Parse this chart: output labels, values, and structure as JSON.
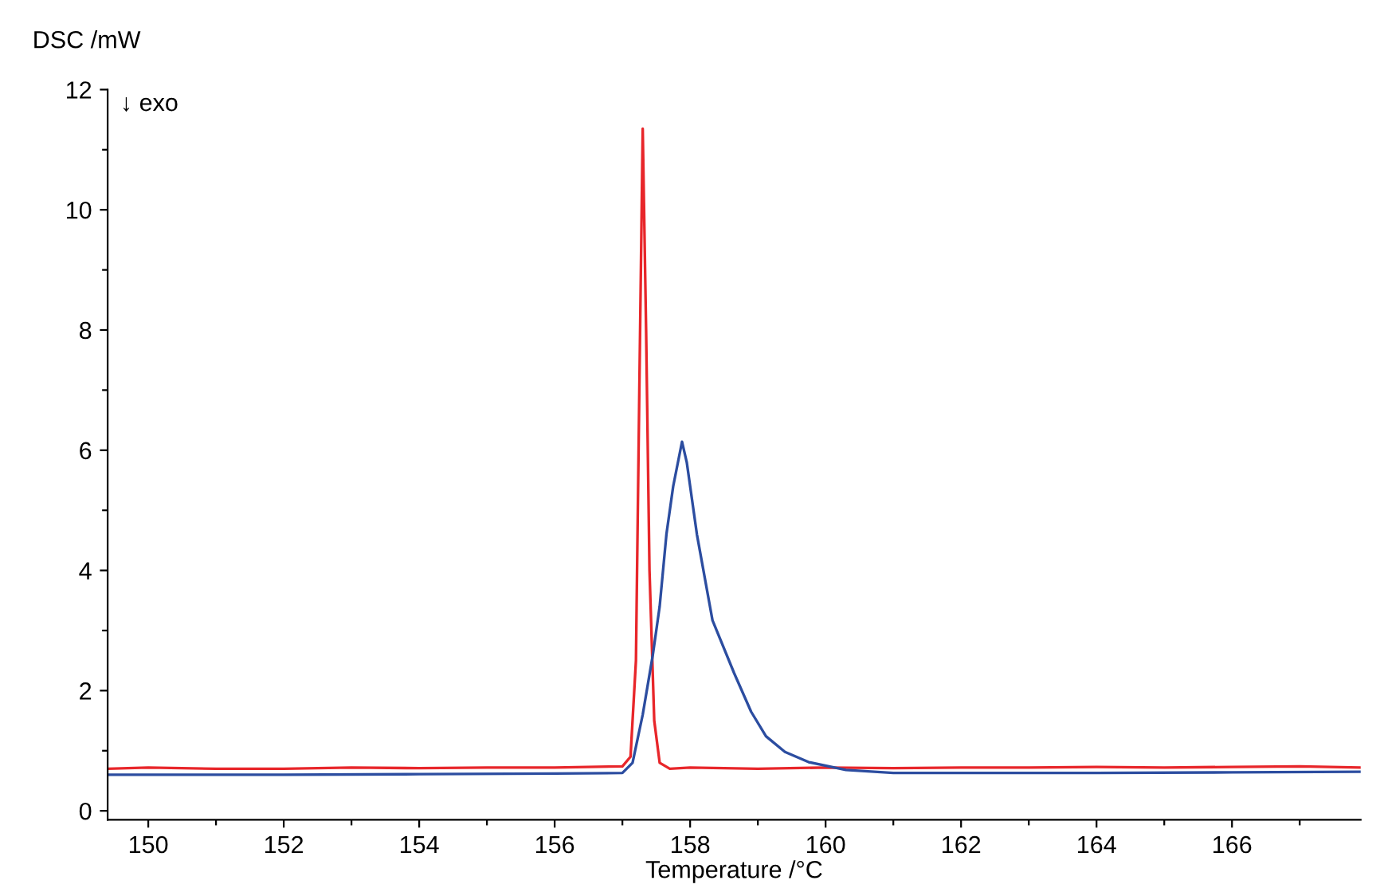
{
  "chart_data": {
    "type": "line",
    "xlabel": "Temperature /°C",
    "ylabel": "DSC /mW",
    "annotations": [
      "↓ exo"
    ],
    "xlim": [
      149.4,
      167.9
    ],
    "ylim": [
      -0.15,
      12
    ],
    "xticks": [
      150,
      {
        "value": 151,
        "label": null
      },
      152,
      {
        "value": 153,
        "label": null
      },
      154,
      {
        "value": 155,
        "label": null
      },
      156,
      {
        "value": 157,
        "label": null
      },
      158,
      {
        "value": 159,
        "label": null
      },
      160,
      {
        "value": 161,
        "label": null
      },
      162,
      {
        "value": 163,
        "label": null
      },
      164,
      {
        "value": 165,
        "label": null
      },
      166,
      {
        "value": 167,
        "label": null
      }
    ],
    "yticks": [
      0,
      {
        "value": 1,
        "label": null
      },
      2,
      {
        "value": 3,
        "label": null
      },
      4,
      {
        "value": 5,
        "label": null
      },
      6,
      {
        "value": 7,
        "label": null
      },
      8,
      {
        "value": 9,
        "label": null
      },
      10,
      {
        "value": 11,
        "label": null
      },
      12
    ],
    "grid": false,
    "line_style": "solid",
    "marker": "none",
    "series": [
      {
        "color": "#e8262a",
        "x": [
          149.4,
          150,
          151,
          152,
          153,
          154,
          155,
          156,
          157.0,
          157.12,
          157.2,
          157.25,
          157.3,
          157.35,
          157.4,
          157.47,
          157.55,
          157.7,
          158,
          159,
          160,
          161,
          162,
          163,
          164,
          165,
          166,
          167,
          167.9
        ],
        "values": [
          0.7,
          0.72,
          0.7,
          0.7,
          0.72,
          0.71,
          0.72,
          0.72,
          0.74,
          0.9,
          2.5,
          7,
          11.35,
          8,
          4,
          1.5,
          0.8,
          0.7,
          0.72,
          0.7,
          0.72,
          0.71,
          0.72,
          0.72,
          0.73,
          0.72,
          0.73,
          0.74,
          0.72
        ]
      },
      {
        "color": "#2c4da0",
        "x": [
          149.4,
          152,
          154,
          156,
          157.0,
          157.15,
          157.3,
          157.45,
          157.55,
          157.65,
          157.75,
          157.88,
          157.95,
          158.1,
          158.33,
          158.65,
          158.9,
          159.12,
          159.4,
          159.75,
          160.3,
          161,
          162,
          164,
          166,
          167.9
        ],
        "values": [
          0.6,
          0.6,
          0.61,
          0.62,
          0.63,
          0.8,
          1.6,
          2.6,
          3.4,
          4.6,
          5.4,
          6.14,
          5.8,
          4.6,
          3.17,
          2.29,
          1.65,
          1.24,
          0.98,
          0.81,
          0.68,
          0.63,
          0.63,
          0.63,
          0.64,
          0.65
        ]
      }
    ]
  }
}
